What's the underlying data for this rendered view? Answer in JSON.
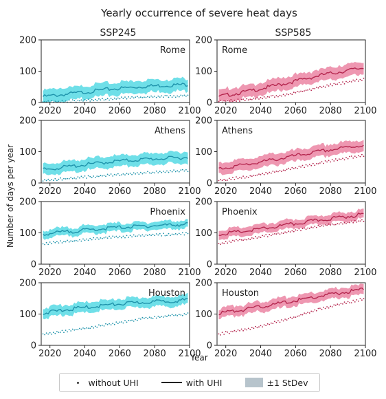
{
  "figure": {
    "title": "Yearly occurrence of severe heat days",
    "column_titles": [
      "SSP245",
      "SSP585"
    ],
    "ylabel": "Number of days per year",
    "xlabel": "Year"
  },
  "legend": {
    "dots_label": "without UHI",
    "line_label": "with UHI",
    "band_label": "±1 StDev"
  },
  "colors": {
    "ssp245_line": "#1f93ab",
    "ssp245_band": "#5fdbe6",
    "ssp585_line": "#b5274f",
    "ssp585_band": "#ec8ca8",
    "dots": "#333333"
  },
  "chart_data": [
    {
      "type": "line",
      "city": "Rome",
      "scenario": "SSP245",
      "xlim": [
        2015,
        2100
      ],
      "ylim": [
        0,
        200
      ],
      "yticks": [
        0,
        100,
        200
      ],
      "xticks": [
        2020,
        2040,
        2060,
        2080,
        2100
      ],
      "with_uhi": {
        "x": [
          2015,
          2035,
          2055,
          2075,
          2100
        ],
        "y": [
          18,
          30,
          43,
          52,
          58
        ]
      },
      "stdev": [
        20,
        20,
        20,
        20,
        20
      ],
      "without_uhi": {
        "x": [
          2015,
          2035,
          2055,
          2075,
          2100
        ],
        "y": [
          2,
          5,
          12,
          17,
          22
        ]
      }
    },
    {
      "type": "line",
      "city": "Rome",
      "scenario": "SSP585",
      "xlim": [
        2015,
        2100
      ],
      "ylim": [
        0,
        200
      ],
      "yticks": [
        0,
        100,
        200
      ],
      "xticks": [
        2020,
        2040,
        2060,
        2080,
        2100
      ],
      "with_uhi": {
        "x": [
          2015,
          2035,
          2055,
          2075,
          2100
        ],
        "y": [
          18,
          38,
          62,
          88,
          112
        ]
      },
      "stdev": [
        20,
        20,
        20,
        20,
        20
      ],
      "without_uhi": {
        "x": [
          2015,
          2035,
          2055,
          2075,
          2100
        ],
        "y": [
          3,
          10,
          25,
          50,
          75
        ]
      }
    },
    {
      "type": "line",
      "city": "Athens",
      "scenario": "SSP245",
      "xlim": [
        2015,
        2100
      ],
      "ylim": [
        0,
        200
      ],
      "yticks": [
        0,
        100,
        200
      ],
      "xticks": [
        2020,
        2040,
        2060,
        2080,
        2100
      ],
      "with_uhi": {
        "x": [
          2015,
          2035,
          2055,
          2075,
          2100
        ],
        "y": [
          42,
          55,
          68,
          76,
          82
        ]
      },
      "stdev": [
        18,
        18,
        18,
        18,
        18
      ],
      "without_uhi": {
        "x": [
          2015,
          2035,
          2055,
          2075,
          2100
        ],
        "y": [
          8,
          16,
          25,
          33,
          40
        ]
      }
    },
    {
      "type": "line",
      "city": "Athens",
      "scenario": "SSP585",
      "xlim": [
        2015,
        2100
      ],
      "ylim": [
        0,
        200
      ],
      "yticks": [
        0,
        100,
        200
      ],
      "xticks": [
        2020,
        2040,
        2060,
        2080,
        2100
      ],
      "with_uhi": {
        "x": [
          2015,
          2035,
          2055,
          2075,
          2100
        ],
        "y": [
          45,
          62,
          82,
          102,
          122
        ]
      },
      "stdev": [
        18,
        18,
        18,
        18,
        18
      ],
      "without_uhi": {
        "x": [
          2015,
          2035,
          2055,
          2075,
          2100
        ],
        "y": [
          8,
          22,
          42,
          65,
          90
        ]
      }
    },
    {
      "type": "line",
      "city": "Phoenix",
      "scenario": "SSP245",
      "xlim": [
        2015,
        2100
      ],
      "ylim": [
        0,
        200
      ],
      "yticks": [
        0,
        100,
        200
      ],
      "xticks": [
        2020,
        2040,
        2060,
        2080,
        2100
      ],
      "with_uhi": {
        "x": [
          2015,
          2035,
          2055,
          2075,
          2100
        ],
        "y": [
          96,
          106,
          116,
          122,
          128
        ]
      },
      "stdev": [
        13,
        13,
        13,
        13,
        13
      ],
      "without_uhi": {
        "x": [
          2015,
          2035,
          2055,
          2075,
          2100
        ],
        "y": [
          65,
          75,
          86,
          92,
          98
        ]
      }
    },
    {
      "type": "line",
      "city": "Phoenix",
      "scenario": "SSP585",
      "xlim": [
        2015,
        2100
      ],
      "ylim": [
        0,
        200
      ],
      "yticks": [
        0,
        100,
        200
      ],
      "xticks": [
        2020,
        2040,
        2060,
        2080,
        2100
      ],
      "with_uhi": {
        "x": [
          2015,
          2035,
          2055,
          2075,
          2100
        ],
        "y": [
          95,
          108,
          125,
          142,
          160
        ]
      },
      "stdev": [
        14,
        14,
        14,
        14,
        14
      ],
      "without_uhi": {
        "x": [
          2015,
          2035,
          2055,
          2075,
          2100
        ],
        "y": [
          65,
          83,
          102,
          122,
          140
        ]
      }
    },
    {
      "type": "line",
      "city": "Houston",
      "scenario": "SSP245",
      "xlim": [
        2015,
        2100
      ],
      "ylim": [
        0,
        200
      ],
      "yticks": [
        0,
        100,
        200
      ],
      "xticks": [
        2020,
        2040,
        2060,
        2080,
        2100
      ],
      "with_uhi": {
        "x": [
          2015,
          2035,
          2055,
          2075,
          2100
        ],
        "y": [
          102,
          118,
          130,
          138,
          145
        ]
      },
      "stdev": [
        16,
        16,
        16,
        16,
        16
      ],
      "without_uhi": {
        "x": [
          2015,
          2035,
          2055,
          2075,
          2100
        ],
        "y": [
          35,
          50,
          68,
          88,
          100
        ]
      }
    },
    {
      "type": "line",
      "city": "Houston",
      "scenario": "SSP585",
      "xlim": [
        2015,
        2100
      ],
      "ylim": [
        0,
        200
      ],
      "yticks": [
        0,
        100,
        200
      ],
      "xticks": [
        2020,
        2040,
        2060,
        2080,
        2100
      ],
      "with_uhi": {
        "x": [
          2015,
          2035,
          2055,
          2075,
          2100
        ],
        "y": [
          102,
          118,
          138,
          158,
          180
        ]
      },
      "stdev": [
        16,
        16,
        16,
        16,
        16
      ],
      "without_uhi": {
        "x": [
          2015,
          2035,
          2055,
          2075,
          2100
        ],
        "y": [
          35,
          55,
          82,
          118,
          150
        ]
      }
    }
  ]
}
